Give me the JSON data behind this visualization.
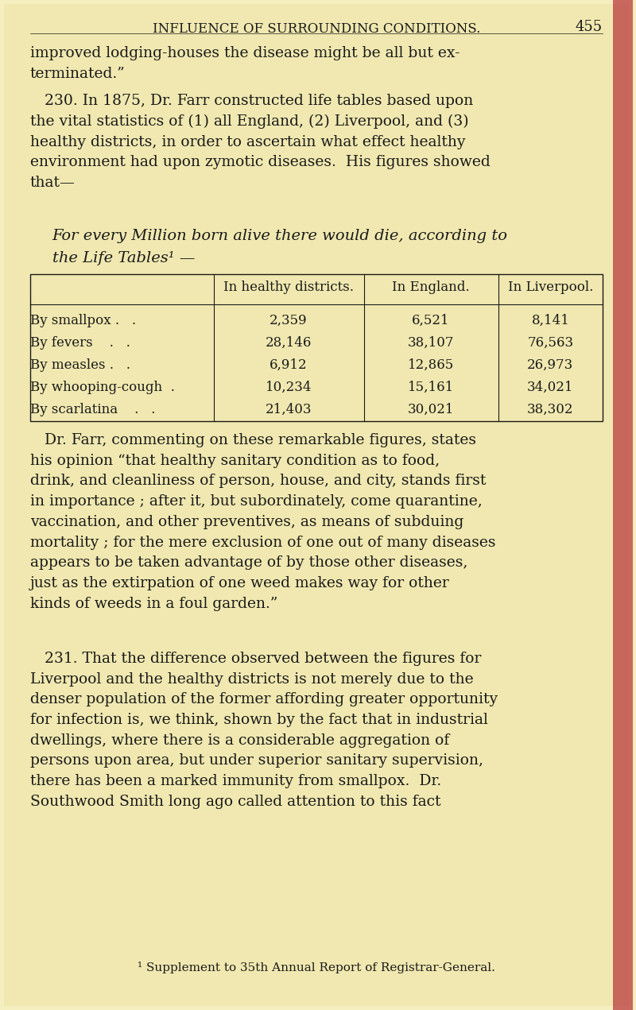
{
  "bg_color": "#f5efc0",
  "page_color": "#f0e8b0",
  "text_color": "#1a1a1a",
  "header_text": "INFLUENCE OF SURROUNDING CONDITIONS.",
  "header_page_num": "455",
  "para1": "improved lodging-houses the disease might be all but ex-\nterminated.”",
  "para2_indent": "   230. In 1875, Dr. Farr constructed life tables based upon\nthe vital statistics of (1) all England, (2) Liverpool, and (3)\nhealthy districts, in order to ascertain what effect healthy\nenvironment had upon zymotic diseases.  His figures showed\nthat—",
  "italic_line1": "For every Million born alive there would die, according to",
  "italic_line2": "the Life Tables¹ —",
  "table_col_headers": [
    "In healthy districts.",
    "In England.",
    "In Liverpool."
  ],
  "table_row_labels": [
    "By smallpox .   .",
    "By fevers    .   .",
    "By measles .   .",
    "By whooping-cough  .",
    "By scarlatina    .   ."
  ],
  "table_data": [
    [
      "2,359",
      "6,521",
      "8,141"
    ],
    [
      "28,146",
      "38,107",
      "76,563"
    ],
    [
      "6,912",
      "12,865",
      "26,973"
    ],
    [
      "10,234",
      "15,161",
      "34,021"
    ],
    [
      "21,403",
      "30,021",
      "38,302"
    ]
  ],
  "para3": "   Dr. Farr, commenting on these remarkable figures, states\nhis opinion “that healthy sanitary condition as to food,\ndrink, and cleanliness of person, house, and city, stands first\nin importance ; after it, but subordinately, come quarantine,\nvaccination, and other preventives, as means of subduing\nmortality ; for the mere exclusion of one out of many diseases\nappears to be taken advantage of by those other diseases,\njust as the extirpation of one weed makes way for other\nkinds of weeds in a foul garden.”",
  "para4_indent": "   231. That the difference observed between the figures for\nLiverpool and the healthy districts is not merely due to the\ndenser population of the former affording greater opportunity\nfor infection is, we think, shown by the fact that in industrial\ndwellings, where there is a considerable aggregation of\npersons upon area, but under superior sanitary supervision,\nthere has been a marked immunity from smallpox.  Dr.\nSouthwood Smith long ago called attention to this fact",
  "footnote": "¹ Supplement to 35th Annual Report of Registrar-General.",
  "main_fontsize": 13.5,
  "header_fontsize": 12,
  "table_fontsize": 12,
  "italic_fontsize": 14
}
